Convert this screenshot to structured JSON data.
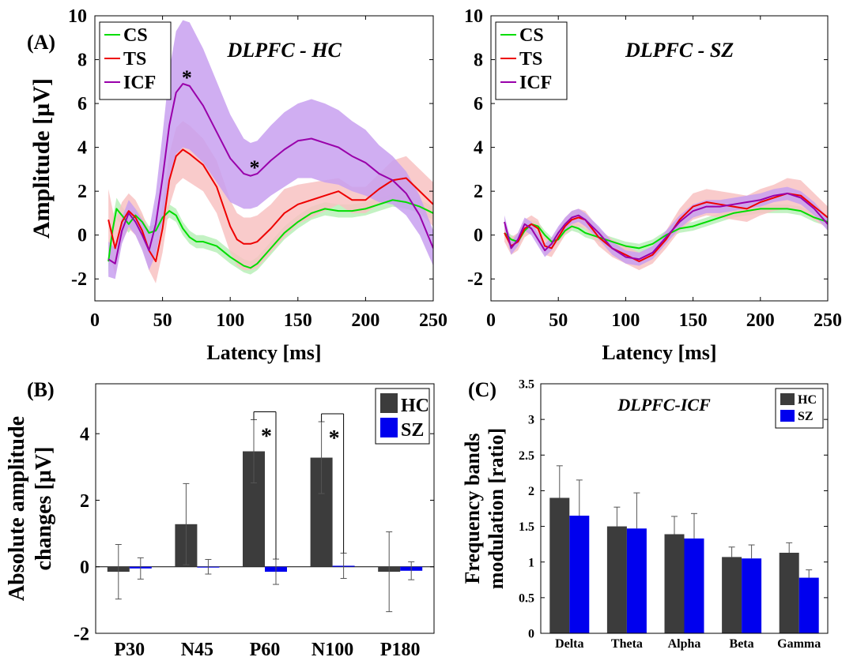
{
  "panel_labels": {
    "a": "(A)",
    "b": "(B)",
    "c": "(C)"
  },
  "colors": {
    "CS": "#00dd00",
    "CS_band": "#b8f0b8",
    "TS": "#ee0000",
    "TS_band": "#f8c2c2",
    "ICF": "#9900aa",
    "ICF_band": "#c8a0f0",
    "HC": "#3c3c3c",
    "SZ": "#0000ee"
  },
  "chart_data": [
    {
      "id": "A_HC",
      "type": "line",
      "title": "DLPFC - HC",
      "xlabel": "Latency [ms]",
      "ylabel": "Amplitude [µV]",
      "xlim": [
        0,
        250
      ],
      "ylim": [
        -3,
        10
      ],
      "xticks": [
        0,
        50,
        100,
        150,
        200,
        250
      ],
      "yticks": [
        -2,
        0,
        2,
        4,
        6,
        8,
        10
      ],
      "legend_position": "top-left",
      "series": [
        {
          "name": "CS",
          "x": [
            10,
            13,
            16,
            20,
            25,
            30,
            35,
            40,
            45,
            50,
            55,
            60,
            65,
            70,
            75,
            80,
            90,
            100,
            110,
            115,
            120,
            130,
            140,
            150,
            160,
            170,
            180,
            190,
            200,
            210,
            220,
            230,
            240,
            250
          ],
          "y": [
            -1.2,
            0.2,
            1.2,
            0.9,
            0.5,
            0.9,
            0.6,
            0.1,
            0.2,
            0.8,
            1.1,
            0.9,
            0.3,
            -0.1,
            -0.3,
            -0.3,
            -0.5,
            -1.0,
            -1.4,
            -1.5,
            -1.3,
            -0.6,
            0.1,
            0.6,
            1.0,
            1.2,
            1.1,
            1.1,
            1.2,
            1.4,
            1.6,
            1.5,
            1.3,
            1.0
          ],
          "band": [
            0.6,
            0.5,
            0.5,
            0.4,
            0.4,
            0.3,
            0.3,
            0.3,
            0.3,
            0.3,
            0.3,
            0.3,
            0.3,
            0.3,
            0.3,
            0.3,
            0.3,
            0.3,
            0.3,
            0.3,
            0.3,
            0.3,
            0.3,
            0.3,
            0.3,
            0.3,
            0.3,
            0.3,
            0.3,
            0.3,
            0.3,
            0.3,
            0.3,
            0.3
          ]
        },
        {
          "name": "TS",
          "x": [
            10,
            15,
            20,
            25,
            30,
            35,
            40,
            45,
            50,
            55,
            60,
            65,
            70,
            80,
            90,
            100,
            105,
            110,
            115,
            120,
            130,
            140,
            150,
            160,
            170,
            180,
            190,
            200,
            210,
            220,
            230,
            240,
            250
          ],
          "y": [
            0.7,
            -0.6,
            0.6,
            1.1,
            0.8,
            0.2,
            -0.7,
            -1.2,
            0.3,
            2.5,
            3.6,
            3.9,
            3.7,
            3.2,
            2.2,
            0.4,
            -0.2,
            -0.4,
            -0.4,
            -0.3,
            0.3,
            1.0,
            1.4,
            1.6,
            1.8,
            2.0,
            1.6,
            1.6,
            2.1,
            2.5,
            2.6,
            2.0,
            1.4
          ],
          "band": [
            1.4,
            1.2,
            0.9,
            0.8,
            0.8,
            0.8,
            0.9,
            1.0,
            1.1,
            1.2,
            1.3,
            1.3,
            1.3,
            1.2,
            1.2,
            1.2,
            1.2,
            1.2,
            1.2,
            1.2,
            1.1,
            1.1,
            0.9,
            0.8,
            0.7,
            0.6,
            0.6,
            0.6,
            0.7,
            0.9,
            1.0,
            1.0,
            1.0
          ]
        },
        {
          "name": "ICF",
          "x": [
            10,
            15,
            20,
            25,
            30,
            35,
            40,
            45,
            50,
            55,
            60,
            65,
            70,
            80,
            90,
            100,
            110,
            115,
            120,
            130,
            140,
            150,
            160,
            170,
            180,
            190,
            200,
            210,
            220,
            230,
            240,
            250
          ],
          "y": [
            -1.1,
            -1.3,
            0.2,
            1.0,
            0.6,
            0.0,
            -0.7,
            0.5,
            2.6,
            5.0,
            6.5,
            6.9,
            6.8,
            5.9,
            4.7,
            3.5,
            2.8,
            2.7,
            2.8,
            3.4,
            3.9,
            4.3,
            4.4,
            4.2,
            4.0,
            3.6,
            3.3,
            2.8,
            2.5,
            1.9,
            0.9,
            -0.6
          ],
          "band": [
            0.8,
            0.7,
            0.6,
            0.6,
            0.6,
            0.7,
            0.9,
            1.4,
            2.0,
            2.5,
            2.8,
            2.9,
            2.9,
            2.6,
            2.3,
            2.0,
            1.6,
            1.5,
            1.5,
            1.6,
            1.7,
            1.7,
            1.8,
            1.8,
            1.7,
            1.6,
            1.5,
            1.3,
            1.1,
            1.0,
            0.9,
            0.8
          ]
        }
      ],
      "annotations": [
        {
          "text": "*",
          "x": 68,
          "y": 7.3
        },
        {
          "text": "*",
          "x": 118,
          "y": 3.2
        }
      ]
    },
    {
      "id": "A_SZ",
      "type": "line",
      "title": "DLPFC - SZ",
      "xlabel": "Latency [ms]",
      "ylabel": "",
      "xlim": [
        0,
        250
      ],
      "ylim": [
        -3,
        10
      ],
      "xticks": [
        0,
        50,
        100,
        150,
        200,
        250
      ],
      "yticks": [
        -2,
        0,
        2,
        4,
        6,
        8,
        10
      ],
      "legend_position": "top-left",
      "series": [
        {
          "name": "CS",
          "x": [
            10,
            15,
            20,
            25,
            30,
            35,
            40,
            45,
            50,
            55,
            60,
            65,
            70,
            80,
            90,
            100,
            110,
            120,
            130,
            140,
            150,
            160,
            170,
            180,
            190,
            200,
            210,
            220,
            230,
            240,
            250
          ],
          "y": [
            0.1,
            -0.2,
            -0.3,
            0.2,
            0.5,
            0.4,
            0.0,
            -0.3,
            -0.2,
            0.2,
            0.4,
            0.3,
            0.1,
            -0.1,
            -0.3,
            -0.5,
            -0.6,
            -0.4,
            0.0,
            0.3,
            0.4,
            0.6,
            0.8,
            1.0,
            1.1,
            1.2,
            1.2,
            1.2,
            1.1,
            0.8,
            0.6
          ],
          "band": [
            0.2,
            0.2,
            0.2,
            0.2,
            0.2,
            0.2,
            0.2,
            0.2,
            0.2,
            0.2,
            0.2,
            0.2,
            0.2,
            0.2,
            0.2,
            0.2,
            0.2,
            0.2,
            0.2,
            0.2,
            0.2,
            0.2,
            0.2,
            0.2,
            0.2,
            0.2,
            0.2,
            0.2,
            0.2,
            0.2,
            0.2
          ]
        },
        {
          "name": "TS",
          "x": [
            10,
            15,
            20,
            25,
            30,
            35,
            40,
            45,
            50,
            55,
            60,
            65,
            70,
            80,
            90,
            100,
            110,
            120,
            130,
            140,
            150,
            160,
            170,
            180,
            190,
            200,
            210,
            220,
            230,
            240,
            250
          ],
          "y": [
            0.1,
            -0.5,
            -0.3,
            0.3,
            0.5,
            0.3,
            -0.5,
            -0.6,
            -0.1,
            0.4,
            0.7,
            0.8,
            0.7,
            -0.1,
            -0.6,
            -0.9,
            -1.2,
            -0.9,
            -0.2,
            0.7,
            1.3,
            1.5,
            1.4,
            1.3,
            1.2,
            1.5,
            1.7,
            1.9,
            1.8,
            1.3,
            0.8
          ],
          "band": [
            0.4,
            0.4,
            0.4,
            0.4,
            0.4,
            0.4,
            0.4,
            0.4,
            0.4,
            0.4,
            0.4,
            0.4,
            0.4,
            0.4,
            0.4,
            0.4,
            0.4,
            0.4,
            0.4,
            0.5,
            0.6,
            0.6,
            0.6,
            0.6,
            0.6,
            0.6,
            0.6,
            0.7,
            0.7,
            0.6,
            0.5
          ]
        },
        {
          "name": "ICF",
          "x": [
            10,
            15,
            20,
            25,
            30,
            35,
            40,
            45,
            50,
            55,
            60,
            65,
            70,
            80,
            90,
            100,
            110,
            120,
            130,
            140,
            150,
            160,
            170,
            180,
            190,
            200,
            210,
            220,
            230,
            240,
            250
          ],
          "y": [
            0.6,
            -0.6,
            -0.2,
            0.5,
            0.3,
            -0.2,
            -0.7,
            -0.4,
            0.1,
            0.5,
            0.8,
            0.9,
            0.7,
            0.1,
            -0.6,
            -1.0,
            -1.1,
            -0.8,
            -0.1,
            0.6,
            1.1,
            1.3,
            1.3,
            1.4,
            1.5,
            1.6,
            1.8,
            1.9,
            1.7,
            1.2,
            0.5
          ],
          "band": [
            0.3,
            0.3,
            0.3,
            0.3,
            0.3,
            0.3,
            0.3,
            0.3,
            0.3,
            0.3,
            0.3,
            0.3,
            0.3,
            0.3,
            0.3,
            0.3,
            0.3,
            0.3,
            0.3,
            0.3,
            0.3,
            0.3,
            0.3,
            0.3,
            0.3,
            0.3,
            0.3,
            0.3,
            0.3,
            0.3,
            0.3
          ]
        }
      ],
      "annotations": []
    },
    {
      "id": "B",
      "type": "bar",
      "title": "",
      "xlabel": "",
      "ylabel": "Absolute amplitude changes [µV]",
      "ylabel_lines": [
        "Absolute amplitude",
        "changes [µV]"
      ],
      "ylim": [
        -2,
        5.5
      ],
      "yticks": [
        -2,
        0,
        2,
        4
      ],
      "legend_position": "top-right",
      "categories": [
        "P30",
        "N45",
        "P60",
        "N100",
        "P180"
      ],
      "series": [
        {
          "name": "HC",
          "values": [
            -0.15,
            1.28,
            3.47,
            3.28,
            -0.15
          ],
          "err": [
            0.82,
            1.22,
            0.95,
            1.08,
            1.2
          ]
        },
        {
          "name": "SZ",
          "values": [
            -0.05,
            0.0,
            -0.15,
            0.03,
            -0.12
          ],
          "err": [
            0.32,
            0.22,
            0.38,
            0.38,
            0.27
          ]
        }
      ],
      "significance": [
        {
          "category": "P60",
          "text": "*"
        },
        {
          "category": "N100",
          "text": "*"
        }
      ]
    },
    {
      "id": "C",
      "type": "bar",
      "title": "DLPFC-ICF",
      "xlabel": "",
      "ylabel": "Frequency bands modulation [ratio]",
      "ylabel_lines": [
        "Frequency bands",
        "modulation [ratio]"
      ],
      "ylim": [
        0,
        3.5
      ],
      "yticks": [
        0,
        0.5,
        1,
        1.5,
        2,
        2.5,
        3,
        3.5
      ],
      "legend_position": "top-right",
      "categories": [
        "Delta",
        "Theta",
        "Alpha",
        "Beta",
        "Gamma"
      ],
      "series": [
        {
          "name": "HC",
          "values": [
            1.9,
            1.5,
            1.39,
            1.07,
            1.13
          ],
          "err": [
            0.45,
            0.27,
            0.25,
            0.14,
            0.14
          ]
        },
        {
          "name": "SZ",
          "values": [
            1.65,
            1.47,
            1.33,
            1.05,
            0.78
          ],
          "err": [
            0.5,
            0.5,
            0.35,
            0.19,
            0.11
          ]
        }
      ]
    }
  ]
}
